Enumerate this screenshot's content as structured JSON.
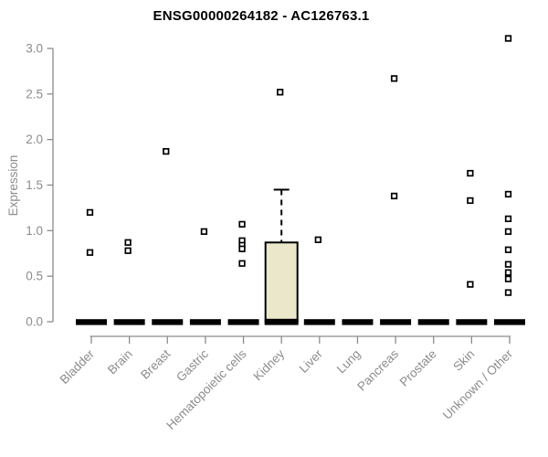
{
  "chart_data": {
    "type": "boxplot",
    "title": "ENSG00000264182 - AC126763.1",
    "ylabel": "Expression",
    "ylim": [
      0.0,
      3.0
    ],
    "yticks": [
      0.0,
      0.5,
      1.0,
      1.5,
      2.0,
      2.5,
      3.0
    ],
    "grid": false,
    "legend": "none",
    "point_marker": "open-square",
    "categories": [
      "Bladder",
      "Brain",
      "Breast",
      "Gastric",
      "Hematopoietic cells",
      "Kidney",
      "Liver",
      "Lung",
      "Pancreas",
      "Prostate",
      "Skin",
      "Unknown / Other"
    ],
    "boxes": [
      {
        "category": "Bladder",
        "median": 0,
        "q1": 0,
        "q3": 0,
        "whisker_low": 0,
        "whisker_high": 0,
        "points": [
          1.2,
          0.76
        ]
      },
      {
        "category": "Brain",
        "median": 0,
        "q1": 0,
        "q3": 0,
        "whisker_low": 0,
        "whisker_high": 0,
        "points": [
          0.87,
          0.78
        ]
      },
      {
        "category": "Breast",
        "median": 0,
        "q1": 0,
        "q3": 0,
        "whisker_low": 0,
        "whisker_high": 0,
        "points": [
          1.87
        ]
      },
      {
        "category": "Gastric",
        "median": 0,
        "q1": 0,
        "q3": 0,
        "whisker_low": 0,
        "whisker_high": 0,
        "points": [
          0.99
        ]
      },
      {
        "category": "Hematopoietic cells",
        "median": 0,
        "q1": 0,
        "q3": 0,
        "whisker_low": 0,
        "whisker_high": 0,
        "points": [
          1.07,
          0.89,
          0.84,
          0.8,
          0.64
        ]
      },
      {
        "category": "Kidney",
        "median": 0,
        "q1": 0,
        "q3": 0.87,
        "whisker_low": 0,
        "whisker_high": 1.45,
        "points": [
          2.52
        ]
      },
      {
        "category": "Liver",
        "median": 0,
        "q1": 0,
        "q3": 0,
        "whisker_low": 0,
        "whisker_high": 0,
        "points": [
          0.9
        ]
      },
      {
        "category": "Lung",
        "median": 0,
        "q1": 0,
        "q3": 0,
        "whisker_low": 0,
        "whisker_high": 0,
        "points": []
      },
      {
        "category": "Pancreas",
        "median": 0,
        "q1": 0,
        "q3": 0,
        "whisker_low": 0,
        "whisker_high": 0,
        "points": [
          2.67,
          1.38
        ]
      },
      {
        "category": "Prostate",
        "median": 0,
        "q1": 0,
        "q3": 0,
        "whisker_low": 0,
        "whisker_high": 0,
        "points": []
      },
      {
        "category": "Skin",
        "median": 0,
        "q1": 0,
        "q3": 0,
        "whisker_low": 0,
        "whisker_high": 0,
        "points": [
          1.63,
          1.33,
          0.41
        ]
      },
      {
        "category": "Unknown / Other",
        "median": 0,
        "q1": 0,
        "q3": 0,
        "whisker_low": 0,
        "whisker_high": 0,
        "points": [
          3.11,
          1.4,
          1.13,
          0.99,
          0.79,
          0.63,
          0.54,
          0.47,
          0.32
        ]
      }
    ],
    "colors": {
      "background": "#FFFFFF",
      "title": "#000000",
      "axis": "#8C8C8C",
      "tick_label": "#8C8C8C",
      "box_fill": "#EBE7CB",
      "box_border": "#000000",
      "median": "#000000",
      "point": "#000000",
      "point_fill": "#FFFFFF"
    }
  }
}
